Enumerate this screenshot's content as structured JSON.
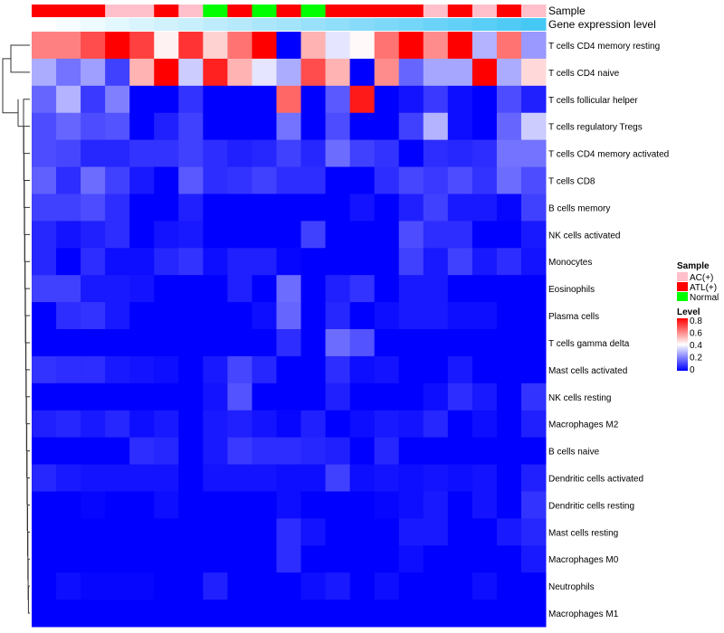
{
  "chart_data": {
    "type": "heatmap",
    "annotation_labels": {
      "sample": "Sample",
      "gene": "Gene expression level"
    },
    "sample_groups": [
      "ATL(+)",
      "ATL(+)",
      "ATL(+)",
      "AC(+)",
      "AC(+)",
      "ATL(+)",
      "AC(+)",
      "Normal",
      "ATL(+)",
      "Normal",
      "ATL(+)",
      "Normal",
      "ATL(+)",
      "ATL(+)",
      "ATL(+)",
      "ATL(+)",
      "AC(+)",
      "ATL(+)",
      "AC(+)",
      "ATL(+)",
      "AC(+)"
    ],
    "gene_expression_level": [
      0,
      0.05,
      0.1,
      0.15,
      0.2,
      0.25,
      0.3,
      0.35,
      0.4,
      0.45,
      0.5,
      0.55,
      0.6,
      0.65,
      0.7,
      0.75,
      0.8,
      0.85,
      0.9,
      0.95,
      1.0
    ],
    "rows": [
      "T cells CD4 memory resting",
      "T cells CD4 naive",
      "T cells follicular helper",
      "T cells regulatory  Tregs",
      "T cells CD4 memory activated",
      "T cells CD8",
      "B cells memory",
      "NK cells activated",
      "Monocytes",
      "Eosinophils",
      "Plasma cells",
      "T cells gamma delta",
      "Mast cells activated",
      "NK cells resting",
      "Macrophages M2",
      "B cells naive",
      "Dendritic cells activated",
      "Dendritic cells resting",
      "Mast cells resting",
      "Macrophages M0",
      "Neutrophils",
      "Macrophages M1"
    ],
    "values": [
      [
        0.6,
        0.6,
        0.68,
        0.8,
        0.7,
        0.42,
        0.72,
        0.47,
        0.62,
        0.8,
        0.0,
        0.52,
        0.36,
        0.41,
        0.62,
        0.8,
        0.58,
        0.8,
        0.28,
        0.62,
        0.24
      ],
      [
        0.27,
        0.18,
        0.25,
        0.1,
        0.52,
        0.8,
        0.32,
        0.75,
        0.52,
        0.36,
        0.27,
        0.68,
        0.52,
        0.0,
        0.58,
        0.16,
        0.26,
        0.26,
        0.8,
        0.27,
        0.46
      ],
      [
        0.16,
        0.28,
        0.09,
        0.2,
        0,
        0,
        0.08,
        0,
        0,
        0,
        0.64,
        0,
        0.14,
        0.76,
        0,
        0.03,
        0.09,
        0.02,
        0,
        0.12,
        0.05
      ],
      [
        0.12,
        0.16,
        0.12,
        0.13,
        0,
        0.05,
        0.1,
        0,
        0,
        0,
        0.18,
        0,
        0.12,
        0,
        0,
        0.1,
        0.28,
        0.02,
        0,
        0.16,
        0.32
      ],
      [
        0.12,
        0.11,
        0.06,
        0.06,
        0.08,
        0.08,
        0.1,
        0.07,
        0.05,
        0.06,
        0.1,
        0.06,
        0.17,
        0.1,
        0.08,
        0,
        0.07,
        0.06,
        0.07,
        0.18,
        0.18
      ],
      [
        0.15,
        0.07,
        0.17,
        0.1,
        0.04,
        0,
        0.14,
        0.07,
        0.08,
        0.1,
        0.07,
        0.07,
        0,
        0,
        0.07,
        0.11,
        0.09,
        0.12,
        0.08,
        0.17,
        0.12
      ],
      [
        0.1,
        0.1,
        0.12,
        0.07,
        0,
        0,
        0.05,
        0,
        0,
        0,
        0,
        0,
        0,
        0.03,
        0,
        0.05,
        0.1,
        0.04,
        0.04,
        0.01,
        0.1
      ],
      [
        0.06,
        0.03,
        0.05,
        0.07,
        0,
        0.03,
        0.04,
        0,
        0,
        0,
        0,
        0.1,
        0,
        0,
        0,
        0.12,
        0.07,
        0.07,
        0,
        0,
        0.04
      ],
      [
        0.06,
        0,
        0.07,
        0.02,
        0.02,
        0.06,
        0.08,
        0.02,
        0.05,
        0.05,
        0.01,
        0,
        0,
        0,
        0,
        0.1,
        0.04,
        0.1,
        0.04,
        0.07,
        0.03
      ],
      [
        0.1,
        0.1,
        0.04,
        0.04,
        0.03,
        0,
        0,
        0,
        0.05,
        0,
        0.17,
        0,
        0.05,
        0.08,
        0,
        0.04,
        0.04,
        0,
        0,
        0,
        0
      ],
      [
        0,
        0.07,
        0.08,
        0.04,
        0,
        0,
        0,
        0,
        0,
        0.02,
        0.16,
        0,
        0.06,
        0,
        0.02,
        0.04,
        0.04,
        0.02,
        0.02,
        0,
        0
      ],
      [
        0,
        0,
        0,
        0,
        0,
        0,
        0,
        0,
        0,
        0,
        0.07,
        0,
        0.17,
        0.13,
        0,
        0,
        0,
        0,
        0,
        0,
        0
      ],
      [
        0.08,
        0.07,
        0.07,
        0.04,
        0.03,
        0.02,
        0,
        0.04,
        0.11,
        0.06,
        0,
        0,
        0.07,
        0.02,
        0.03,
        0,
        0,
        0.04,
        0,
        0,
        0
      ],
      [
        0,
        0,
        0,
        0,
        0,
        0,
        0,
        0.03,
        0.13,
        0,
        0,
        0,
        0.05,
        0,
        0,
        0,
        0.02,
        0.07,
        0.04,
        0,
        0.08
      ],
      [
        0.05,
        0.06,
        0.04,
        0.06,
        0.02,
        0.04,
        0,
        0.04,
        0.05,
        0.03,
        0.01,
        0.05,
        0,
        0.02,
        0.04,
        0.03,
        0.06,
        0,
        0.02,
        0,
        0.05
      ],
      [
        0,
        0,
        0,
        0,
        0.07,
        0.06,
        0,
        0.04,
        0.09,
        0.07,
        0.07,
        0.06,
        0.05,
        0,
        0.06,
        0,
        0,
        0,
        0,
        0,
        0
      ],
      [
        0.06,
        0.04,
        0.03,
        0.03,
        0.03,
        0.03,
        0,
        0.03,
        0.03,
        0.03,
        0.02,
        0.02,
        0.1,
        0.02,
        0.03,
        0.02,
        0.03,
        0.02,
        0.03,
        0,
        0.05
      ],
      [
        0,
        0,
        0.01,
        0,
        0,
        0.02,
        0,
        0,
        0,
        0,
        0.02,
        0,
        0,
        0,
        0.01,
        0.02,
        0.04,
        0,
        0.03,
        0,
        0.08
      ],
      [
        0,
        0,
        0,
        0,
        0,
        0,
        0,
        0,
        0,
        0,
        0.07,
        0.03,
        0,
        0,
        0,
        0.04,
        0.04,
        0,
        0,
        0.04,
        0.06
      ],
      [
        0,
        0,
        0,
        0,
        0,
        0,
        0,
        0,
        0,
        0,
        0.07,
        0,
        0,
        0,
        0,
        0.02,
        0,
        0,
        0,
        0,
        0.04
      ],
      [
        0,
        0.02,
        0.01,
        0.01,
        0.01,
        0,
        0,
        0.05,
        0,
        0,
        0,
        0.02,
        0.04,
        0,
        0.02,
        0,
        0,
        0,
        0.02,
        0,
        0
      ],
      [
        0,
        0,
        0,
        0,
        0,
        0,
        0,
        0,
        0,
        0,
        0,
        0,
        0,
        0,
        0,
        0,
        0,
        0,
        0,
        0,
        0
      ]
    ],
    "scale": {
      "min": 0,
      "max": 0.8,
      "low_color": "#0000ff",
      "mid_color": "#ffffff",
      "high_color": "#ff0000"
    },
    "gene_colors": {
      "low": "#ffffff",
      "high": "#46c8f5"
    },
    "legend": {
      "sample_title": "Sample",
      "sample_entries": [
        {
          "label": "AC(+)",
          "color": "#ffc0cb"
        },
        {
          "label": "ATL(+)",
          "color": "#ff0000"
        },
        {
          "label": "Normal",
          "color": "#00ff00"
        }
      ],
      "level_title": "Level",
      "level_ticks": [
        "0.8",
        "0.6",
        "0.4",
        "0.2",
        "0"
      ],
      "placement": "right"
    }
  }
}
